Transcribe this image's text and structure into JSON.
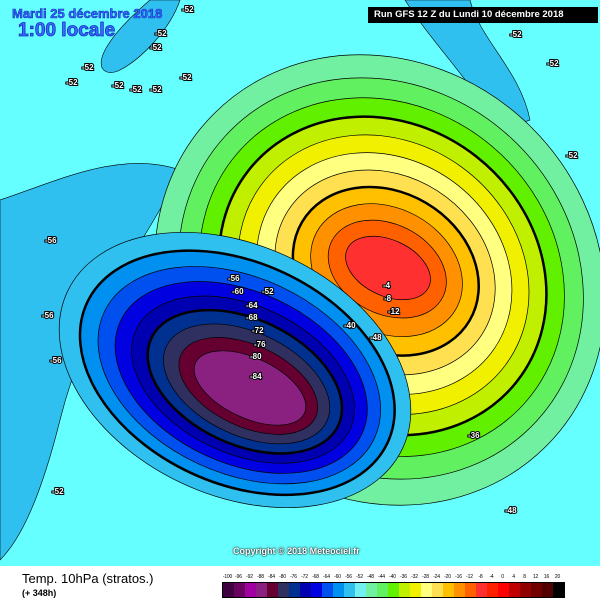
{
  "header": {
    "date": "Mardi 25 décembre 2018",
    "local_time": "1:00 locale",
    "run": "Run GFS 12 Z du Lundi 10 décembre 2018"
  },
  "copyright": "Copyright © 2018 Meteociel.fr",
  "footer": {
    "parameter": "Temp. 10hPa (stratos.)",
    "lead_time": "(+ 348h)"
  },
  "legend": {
    "ticks": [
      "-100",
      "-96",
      "-92",
      "-88",
      "-84",
      "-80",
      "-76",
      "-72",
      "-68",
      "-64",
      "-60",
      "-56",
      "-52",
      "-48",
      "-44",
      "-40",
      "-36",
      "-32",
      "-28",
      "-24",
      "-20",
      "-16",
      "-12",
      "-8",
      "-4",
      "0",
      "4",
      "8",
      "12",
      "16",
      "20"
    ],
    "colors": [
      "#3f0040",
      "#6a0060",
      "#a000a0",
      "#8a2080",
      "#660030",
      "#303060",
      "#003090",
      "#0000b0",
      "#0000e0",
      "#0050f0",
      "#0090f0",
      "#30c0f0",
      "#70f0f0",
      "#70f0a0",
      "#60f060",
      "#60f000",
      "#c0f000",
      "#f0f000",
      "#ffff80",
      "#ffe050",
      "#ffc000",
      "#ff9000",
      "#ff6000",
      "#ff3030",
      "#ff2000",
      "#ff0000",
      "#c00000",
      "#900000",
      "#700000",
      "#500000",
      "#000000"
    ]
  },
  "map_labels": [
    "-52",
    "-52",
    "-52",
    "-52",
    "-52",
    "-52",
    "-52",
    "-52",
    "-52",
    "-52",
    "-52",
    "-52",
    "-56",
    "-56",
    "-56",
    "-52",
    "-56",
    "-60",
    "-52",
    "-64",
    "-68",
    "-72",
    "-76",
    "-80",
    "-84",
    "-4",
    "-8",
    "-12",
    "-40",
    "-48",
    "-36",
    "-48"
  ]
}
